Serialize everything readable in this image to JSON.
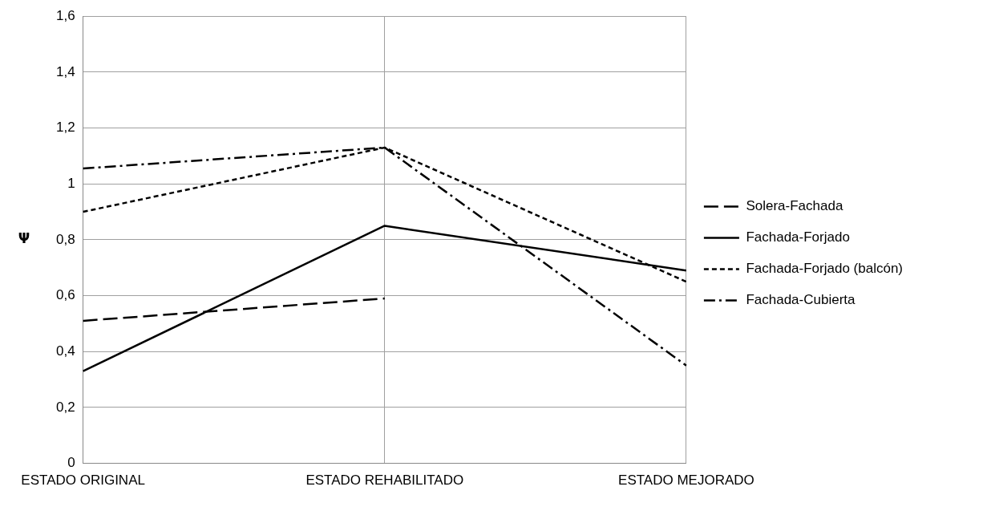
{
  "chart_data": {
    "type": "line",
    "ylabel": "Ψ",
    "categories": [
      "ESTADO ORIGINAL",
      "ESTADO REHABILITADO",
      "ESTADO MEJORADO"
    ],
    "series": [
      {
        "name": "Solera-Fachada",
        "color": "#000000",
        "line_style": "dashed",
        "values": [
          0.51,
          0.59,
          null
        ]
      },
      {
        "name": "Fachada-Forjado",
        "color": "#000000",
        "line_style": "solid",
        "values": [
          0.33,
          0.85,
          0.69
        ]
      },
      {
        "name": "Fachada-Forjado (balcón)",
        "color": "#000000",
        "line_style": "dotted",
        "values": [
          0.9,
          1.13,
          0.65
        ]
      },
      {
        "name": "Fachada-Cubierta",
        "color": "#000000",
        "line_style": "dashdot",
        "values": [
          1.055,
          1.13,
          0.35
        ]
      }
    ],
    "ylim": [
      0,
      1.6
    ],
    "yticks": [
      {
        "value": 0,
        "label": "0"
      },
      {
        "value": 0.2,
        "label": "0,2"
      },
      {
        "value": 0.4,
        "label": "0,4"
      },
      {
        "value": 0.6,
        "label": "0,6"
      },
      {
        "value": 0.8,
        "label": "0,8"
      },
      {
        "value": 1,
        "label": "1"
      },
      {
        "value": 1.2,
        "label": "1,2"
      },
      {
        "value": 1.4,
        "label": "1,4"
      },
      {
        "value": 1.6,
        "label": "1,6"
      }
    ],
    "grid": true,
    "legend": "right",
    "marker": "none"
  }
}
